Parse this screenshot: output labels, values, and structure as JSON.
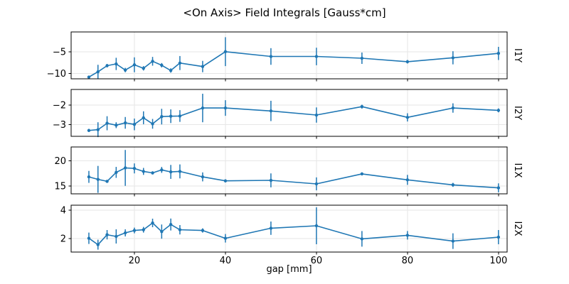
{
  "title": "<On Axis> Field Integrals [Gauss*cm]",
  "chart_data": {
    "type": "line",
    "title": "<On Axis> Field Integrals [Gauss*cm]",
    "xlabel": "gap [mm]",
    "grid": true,
    "marker": "o",
    "error_bars": true,
    "line_color": "#1f77b4",
    "grid_color": "#e6e6e6",
    "spine_color": "#000000",
    "x": [
      10,
      12,
      14,
      16,
      18,
      20,
      22,
      24,
      26,
      28,
      30,
      35,
      40,
      50,
      60,
      70,
      80,
      90,
      100
    ],
    "xticks": [
      20,
      40,
      60,
      80,
      100
    ],
    "xlim": [
      6.1,
      101.9
    ],
    "subplots": [
      {
        "label": "I1Y",
        "yticks": [
          -5,
          -10
        ],
        "ylim": [
          -11.2,
          -0.5
        ],
        "values": [
          -10.8,
          -9.6,
          -8.2,
          -7.8,
          -9.2,
          -8.0,
          -8.8,
          -7.2,
          -8.1,
          -9.3,
          -7.6,
          -8.4,
          -5.0,
          -6.1,
          -6.1,
          -6.5,
          -7.3,
          -6.4,
          -5.4
        ],
        "errors": [
          0.3,
          1.6,
          0.4,
          1.4,
          0.5,
          1.7,
          0.5,
          1.0,
          0.5,
          0.5,
          1.6,
          1.3,
          3.3,
          1.9,
          2.0,
          1.3,
          0.4,
          1.5,
          1.5
        ]
      },
      {
        "label": "I2Y",
        "yticks": [
          -2,
          -3
        ],
        "ylim": [
          -3.6,
          -1.2
        ],
        "values": [
          -3.3,
          -3.26,
          -2.93,
          -3.03,
          -2.91,
          -2.99,
          -2.65,
          -2.96,
          -2.59,
          -2.57,
          -2.56,
          -2.15,
          -2.15,
          -2.3,
          -2.51,
          -2.08,
          -2.63,
          -2.15,
          -2.27
        ],
        "errors": [
          0.08,
          0.38,
          0.36,
          0.15,
          0.3,
          0.3,
          0.33,
          0.25,
          0.4,
          0.35,
          0.3,
          0.73,
          0.4,
          0.52,
          0.39,
          0.1,
          0.21,
          0.24,
          0.1
        ]
      },
      {
        "label": "I1X",
        "yticks": [
          20,
          15
        ],
        "ylim": [
          13.4,
          22.8
        ],
        "values": [
          16.8,
          16.3,
          15.9,
          17.7,
          18.6,
          18.5,
          17.9,
          17.6,
          18.2,
          17.8,
          17.9,
          16.8,
          16.0,
          16.1,
          15.4,
          17.4,
          16.2,
          15.2,
          14.6
        ],
        "errors": [
          1.2,
          2.7,
          0.3,
          1.1,
          3.6,
          1.0,
          0.7,
          0.3,
          0.6,
          1.4,
          1.4,
          0.9,
          0.3,
          1.4,
          1.3,
          0.3,
          1.0,
          0.4,
          0.9
        ]
      },
      {
        "label": "I2X",
        "yticks": [
          4,
          2
        ],
        "ylim": [
          1.05,
          4.35
        ],
        "values": [
          2.02,
          1.57,
          2.27,
          2.15,
          2.4,
          2.57,
          2.62,
          3.1,
          2.49,
          2.99,
          2.62,
          2.57,
          2.02,
          2.73,
          2.9,
          1.98,
          2.23,
          1.82,
          2.1
        ],
        "errors": [
          0.4,
          0.35,
          0.33,
          0.5,
          0.25,
          0.2,
          0.2,
          0.3,
          0.5,
          0.42,
          0.33,
          0.15,
          0.3,
          0.47,
          1.3,
          0.55,
          0.3,
          0.55,
          0.5
        ]
      }
    ]
  }
}
